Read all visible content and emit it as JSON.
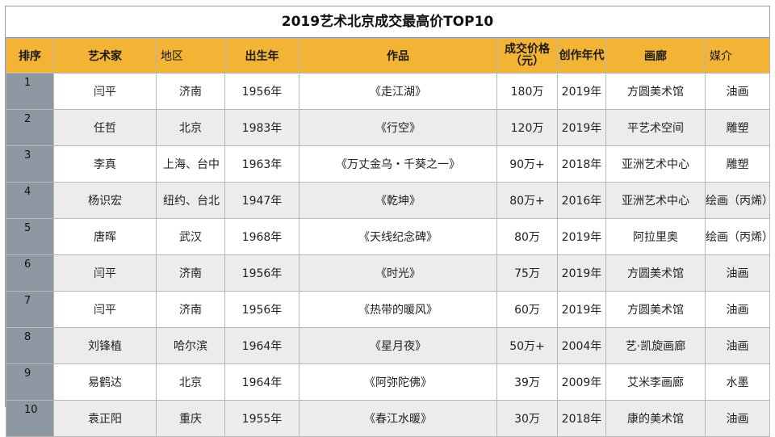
{
  "title": "2019艺术北京成交最高价TOP10",
  "headers": {
    "rank": "排序",
    "artist": "艺术家",
    "region": "地区",
    "born": "出生年",
    "work": "作品",
    "price": "成交价格（元）",
    "year": "创作年代",
    "gallery": "画廊",
    "medium": "媒介"
  },
  "rows": [
    {
      "rank": "1",
      "artist": "闫平",
      "region": "济南",
      "born": "1956年",
      "work": "《走江湖》",
      "price": "180万",
      "year": "2019年",
      "gallery": "方圆美术馆",
      "medium": "油画"
    },
    {
      "rank": "2",
      "artist": "任哲",
      "region": "北京",
      "born": "1983年",
      "work": "《行空》",
      "price": "120万",
      "year": "2019年",
      "gallery": "平艺术空间",
      "medium": "雕塑"
    },
    {
      "rank": "3",
      "artist": "李真",
      "region": "上海、台中",
      "born": "1963年",
      "work": "《万丈金乌・千葵之一》",
      "price": "90万+",
      "year": "2018年",
      "gallery": "亚洲艺术中心",
      "medium": "雕塑"
    },
    {
      "rank": "4",
      "artist": "杨识宏",
      "region": "纽约、台北",
      "born": "1947年",
      "work": "《乾坤》",
      "price": "80万+",
      "year": "2016年",
      "gallery": "亚洲艺术中心",
      "medium": "绘画（丙烯）"
    },
    {
      "rank": "5",
      "artist": "唐晖",
      "region": "武汉",
      "born": "1968年",
      "work": "《天线纪念碑》",
      "price": "80万",
      "year": "2019年",
      "gallery": "阿拉里奥",
      "medium": "绘画（丙烯）"
    },
    {
      "rank": "6",
      "artist": "闫平",
      "region": "济南",
      "born": "1956年",
      "work": "《时光》",
      "price": "75万",
      "year": "2019年",
      "gallery": "方圆美术馆",
      "medium": "油画"
    },
    {
      "rank": "7",
      "artist": "闫平",
      "region": "济南",
      "born": "1956年",
      "work": "《热带的暖风》",
      "price": "60万",
      "year": "2019年",
      "gallery": "方圆美术馆",
      "medium": "油画"
    },
    {
      "rank": "8",
      "artist": "刘锋植",
      "region": "哈尔滨",
      "born": "1964年",
      "work": "《星月夜》",
      "price": "50万+",
      "year": "2004年",
      "gallery": "艺·凯旋画廊",
      "medium": "油画"
    },
    {
      "rank": "9",
      "artist": "易鹤达",
      "region": "北京",
      "born": "1964年",
      "work": "《阿弥陀佛》",
      "price": "39万",
      "year": "2009年",
      "gallery": "艾米李画廊",
      "medium": "水墨"
    },
    {
      "rank": "10",
      "artist": "袁正阳",
      "region": "重庆",
      "born": "1955年",
      "work": "《春江水暖》",
      "price": "30万",
      "year": "2018年",
      "gallery": "康的美术馆",
      "medium": "油画"
    }
  ],
  "colors": {
    "header_bg": "#f3b335",
    "rank_bg": "#8e98a2",
    "alt_row_bg": "#ececec"
  }
}
